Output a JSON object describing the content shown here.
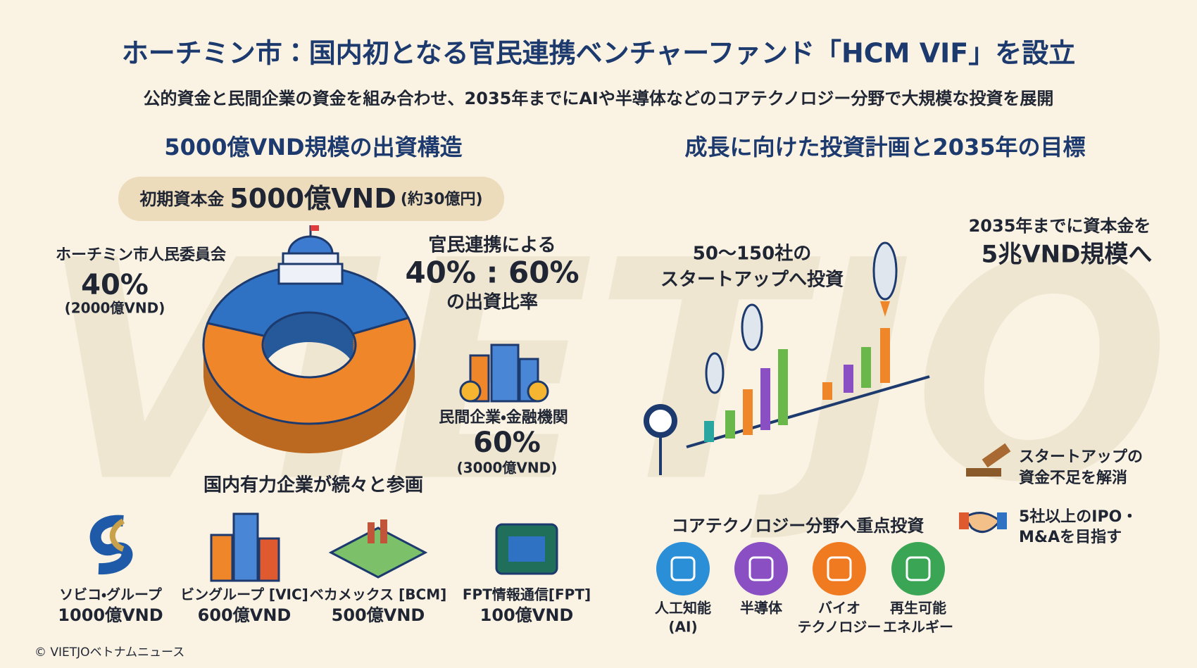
{
  "title": "ホーチミン市：国内初となる官民連携ベンチャーファンド「HCM VIF」を設立",
  "subtitle": "公的資金と民間企業の資金を組み合わせ、2035年までにAIや半導体などのコアテクノロジー分野で大規模な投資を展開",
  "watermark": "VIETJO",
  "capital": {
    "heading": "5000億VND規模の出資構造",
    "initial": {
      "label": "初期資本金",
      "amount": "5000億VND",
      "note": "(約30億円)"
    },
    "segments": [
      {
        "name": "ホーチミン市人民委員会",
        "share": 40,
        "share_label": "40%",
        "amount": "(2000億VND)",
        "color": "#2f72c4"
      },
      {
        "name": "民間企業・金融機関",
        "share": 60,
        "share_label": "60%",
        "amount": "(3000億VND)",
        "color": "#f0862a"
      }
    ],
    "ratio": {
      "lead": "官民連携による",
      "ratio": "40% : 60%",
      "tail": "の出資比率"
    }
  },
  "participants": {
    "heading": "国内有力企業が続々と参画",
    "companies": [
      {
        "name": "ソビコ・グループ",
        "amount": "1000億VND"
      },
      {
        "name": "ビングループ [VIC]",
        "amount": "600億VND"
      },
      {
        "name": "ベカメックス [BCM]",
        "amount": "500億VND"
      },
      {
        "name": "FPT情報通信[FPT]",
        "amount": "100億VND"
      }
    ]
  },
  "plan": {
    "heading": "成長に向けた投資計画と2035年の目標",
    "startups": [
      "50〜150社の",
      "スタートアップへ投資"
    ],
    "capital_goal": [
      "2035年までに資本金を",
      "5兆VND規模へ"
    ],
    "goals": [
      [
        "スタートアップの",
        "資金不足を解消"
      ],
      [
        "5社以上のIPO・",
        "M&Aを目指す"
      ]
    ],
    "focus": {
      "heading": "コアテクノロジー分野へ重点投資",
      "fields": [
        [
          "人工知能",
          "(AI)"
        ],
        [
          "半導体"
        ],
        [
          "バイオ",
          "テクノロジー"
        ],
        [
          "再生可能",
          "エネルギー"
        ]
      ]
    }
  },
  "copyright": "© VIETJOベトナムニュース"
}
